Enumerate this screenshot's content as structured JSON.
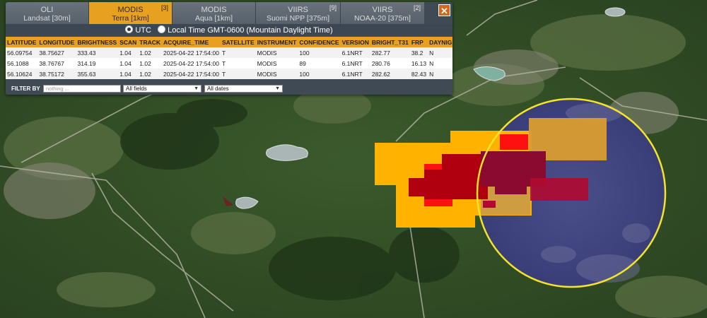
{
  "tabs": [
    {
      "line1": "OLI",
      "line2": "Landsat [30m]",
      "count": "",
      "active": false
    },
    {
      "line1": "MODIS",
      "line2": "Terra [1km]",
      "count": "[3]",
      "active": true
    },
    {
      "line1": "MODIS",
      "line2": "Aqua [1km]",
      "count": "",
      "active": false
    },
    {
      "line1": "VIIRS",
      "line2": "Suomi NPP [375m]",
      "count": "[9]",
      "active": false
    },
    {
      "line1": "VIIRS",
      "line2": "NOAA-20 [375m]",
      "count": "[2]",
      "active": false
    }
  ],
  "close_label": "✕",
  "time": {
    "utc_label": "UTC",
    "local_label": "Local Time GMT-0600 (Mountain Daylight Time)",
    "selected": "utc"
  },
  "table": {
    "headers": [
      "LATITUDE",
      "LONGITUDE",
      "BRIGHTNESS",
      "SCAN",
      "TRACK",
      "ACQUIRE_TIME",
      "SATELLITE",
      "INSTRUMENT",
      "CONFIDENCE",
      "VERSION",
      "BRIGHT_T31",
      "FRP",
      "DAYNIGHT"
    ],
    "rows": [
      [
        "56.09754",
        "38.75627",
        "333.43",
        "1.04",
        "1.02",
        "2025-04-22 17:54:00",
        "T",
        "MODIS",
        "100",
        "6.1NRT",
        "282.77",
        "38.2",
        "N"
      ],
      [
        "56.1088",
        "38.76767",
        "314.19",
        "1.04",
        "1.02",
        "2025-04-22 17:54:00",
        "T",
        "MODIS",
        "89",
        "6.1NRT",
        "280.76",
        "16.13",
        "N"
      ],
      [
        "56.10624",
        "38.75172",
        "355.63",
        "1.04",
        "1.02",
        "2025-04-22 17:54:00",
        "T",
        "MODIS",
        "100",
        "6.1NRT",
        "282.62",
        "82.43",
        "N"
      ]
    ]
  },
  "filter": {
    "label": "FILTER BY",
    "placeholder": "nothing ...",
    "field_select": "All fields",
    "date_select": "All dates"
  },
  "colors": {
    "accent": "#e8a021",
    "panel": "#3f4a55",
    "close": "#d4661e",
    "highlight_ring": "#f4e42a",
    "fire_hot": "#b00010",
    "fire_med": "#ff1010",
    "fire_old": "#ffb300"
  }
}
